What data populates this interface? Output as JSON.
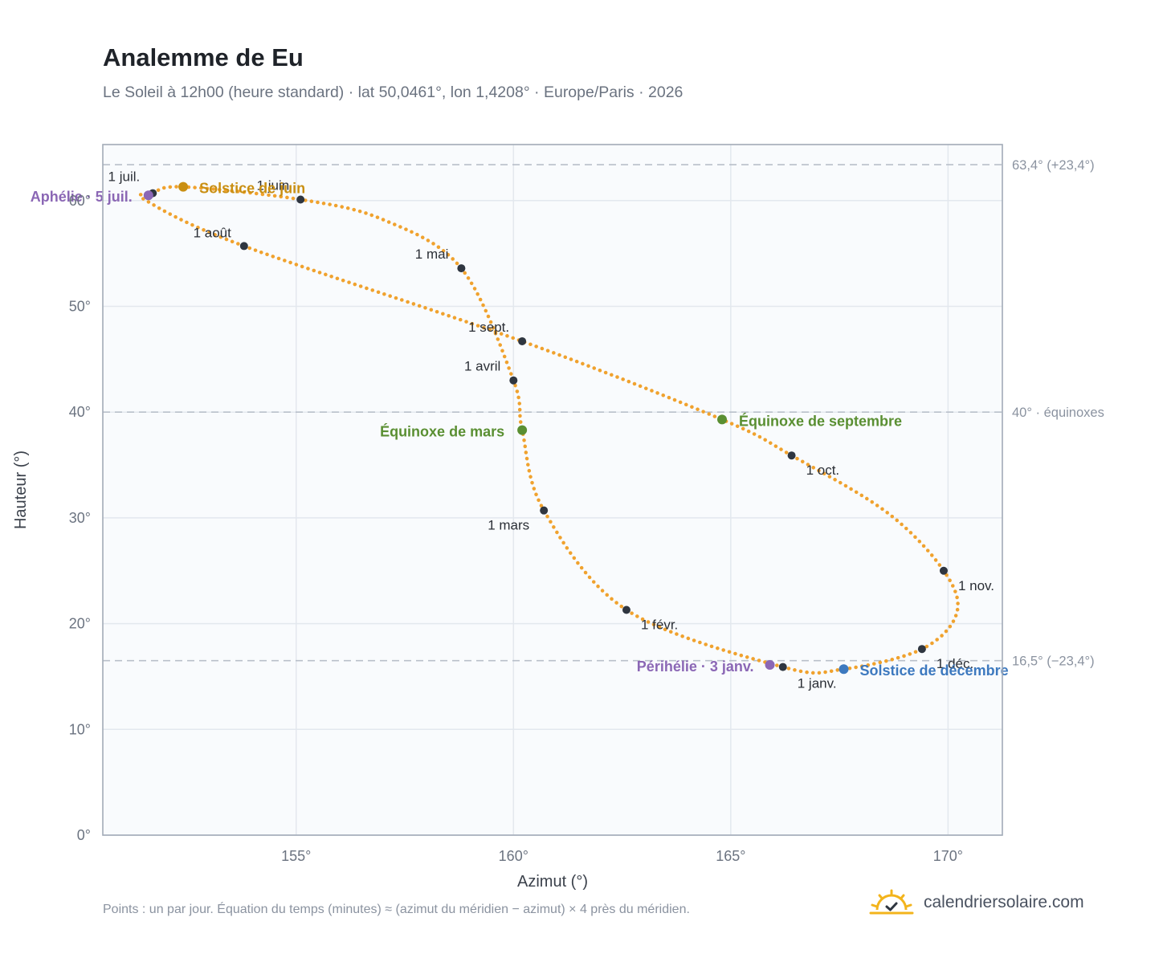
{
  "header": {
    "title": "Analemme de Eu",
    "subtitle": "Le Soleil à 12h00 (heure standard) · lat 50,0461°, lon 1,4208° · Europe/Paris · 2026"
  },
  "footer": {
    "note": "Points : un par jour. Équation du temps (minutes) ≈ (azimut du méridien − azimut) × 4 près du méridien.",
    "brand": "calendriersolaire.com",
    "brand_icon": "sun-check-icon"
  },
  "chart_data": {
    "type": "scatter",
    "xlabel": "Azimut (°)",
    "ylabel": "Hauteur (°)",
    "xlim": [
      150.55,
      171.25
    ],
    "ylim": [
      0,
      65.3
    ],
    "x_ticks": [
      155,
      160,
      165,
      170
    ],
    "x_tick_labels": [
      "155°",
      "160°",
      "165°",
      "170°"
    ],
    "y_ticks": [
      0,
      10,
      20,
      30,
      40,
      50,
      60
    ],
    "y_tick_labels": [
      "0°",
      "10°",
      "20°",
      "30°",
      "40°",
      "50°",
      "60°"
    ],
    "grid": true,
    "colors": {
      "curve": "#f0a22e",
      "month_marker": "#2f3640",
      "solstice_june": "#c98f12",
      "solstice_december": "#3d79bf",
      "equinox": "#5a8f32",
      "apsis": "#8b67b5",
      "reference_line": "#b9c0ca",
      "plot_bg": "#f9fbfd"
    },
    "reference_lines": [
      {
        "y": 63.4,
        "label": "63,4° (+23,4°)"
      },
      {
        "y": 40.0,
        "label": "40° · équinoxes"
      },
      {
        "y": 16.5,
        "label": "16,5° (−23,4°)"
      }
    ],
    "months": [
      {
        "label": "1 janv.",
        "x": 166.2,
        "y": 15.9
      },
      {
        "label": "1 févr.",
        "x": 162.6,
        "y": 21.3
      },
      {
        "label": "1 mars",
        "x": 160.7,
        "y": 30.7
      },
      {
        "label": "1 avril",
        "x": 160.0,
        "y": 43.0
      },
      {
        "label": "1 mai",
        "x": 158.8,
        "y": 53.6
      },
      {
        "label": "1 juin",
        "x": 155.1,
        "y": 60.1
      },
      {
        "label": "1 juil.",
        "x": 151.7,
        "y": 60.7
      },
      {
        "label": "1 août",
        "x": 153.8,
        "y": 55.7
      },
      {
        "label": "1 sept.",
        "x": 160.2,
        "y": 46.7
      },
      {
        "label": "1 oct.",
        "x": 166.4,
        "y": 35.9
      },
      {
        "label": "1 nov.",
        "x": 169.9,
        "y": 25.0
      },
      {
        "label": "1 déc.",
        "x": 169.4,
        "y": 17.6
      }
    ],
    "events": [
      {
        "label": "Solstice de juin",
        "x": 152.4,
        "y": 61.3,
        "color": "#c98f12"
      },
      {
        "label": "Solstice de décembre",
        "x": 167.6,
        "y": 15.7,
        "color": "#3d79bf"
      },
      {
        "label": "Équinoxe de mars",
        "x": 160.2,
        "y": 38.3,
        "color": "#5a8f32"
      },
      {
        "label": "Équinoxe de septembre",
        "x": 164.8,
        "y": 39.3,
        "color": "#5a8f32"
      },
      {
        "label": "Aphélie · 5 juil.",
        "x": 151.6,
        "y": 60.5,
        "color": "#8b67b5"
      },
      {
        "label": "Périhélie · 3 janv.",
        "x": 165.9,
        "y": 16.1,
        "color": "#8b67b5"
      }
    ]
  }
}
